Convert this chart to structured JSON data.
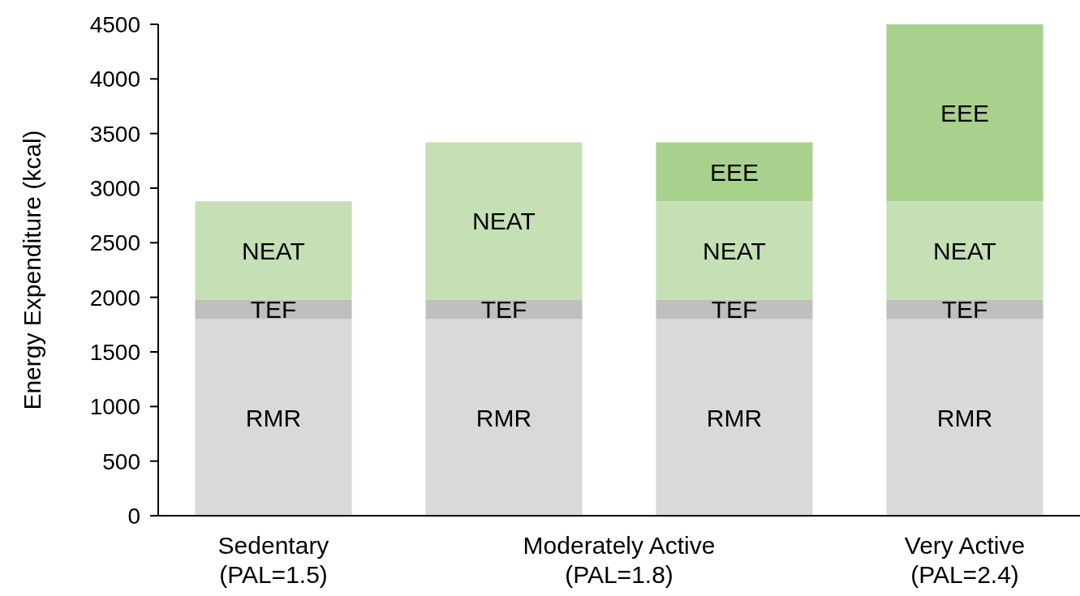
{
  "chart_data": {
    "type": "bar",
    "stacked": true,
    "ylabel": "Energy Expenditure (kcal)",
    "categories": [
      "Sedentary\n(PAL=1.5)",
      null,
      null,
      "Very Active\n(PAL=2.4)"
    ],
    "annotations": [
      "Moderately Active\n(PAL=1.8)"
    ],
    "series": [
      {
        "name": "RMR",
        "color": "#d9d9d9",
        "values": [
          1800,
          1800,
          1800,
          1800
        ]
      },
      {
        "name": "TEF",
        "color": "#bfbfbf",
        "values": [
          180,
          180,
          180,
          180
        ]
      },
      {
        "name": "NEAT",
        "color": "#c5e0b4",
        "values": [
          900,
          1440,
          900,
          900
        ]
      },
      {
        "name": "EEE",
        "color": "#a9d18e",
        "values": [
          null,
          null,
          540,
          1620
        ]
      }
    ],
    "ylim": [
      0,
      4500
    ],
    "yticks": [
      0,
      500,
      1000,
      1500,
      2000,
      2500,
      3000,
      3500,
      4000,
      4500
    ],
    "grid": false
  }
}
